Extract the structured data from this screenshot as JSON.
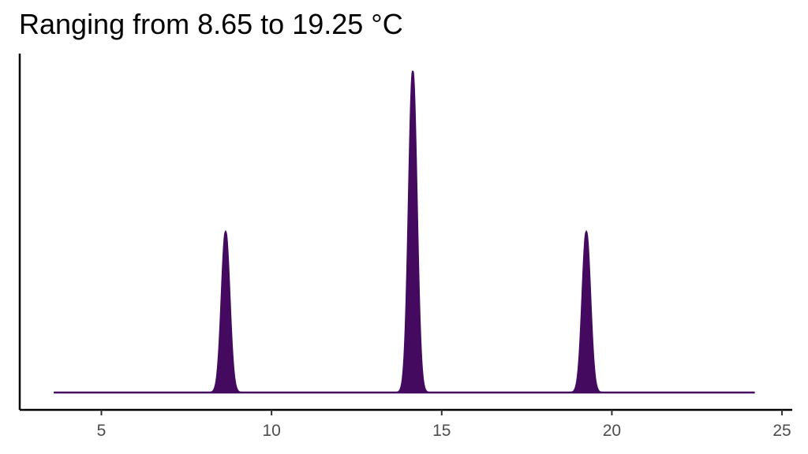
{
  "chart_data": {
    "type": "area",
    "title": "Ranging from 8.65 to 19.25 °C",
    "xlabel": "",
    "ylabel": "",
    "xlim": [
      2.6,
      25.3
    ],
    "xticks": [
      5,
      10,
      15,
      20,
      25
    ],
    "grid": false,
    "legend": "none",
    "fill_color": "#440a5f",
    "line_color": "#440a5f",
    "x_start": 3.6,
    "x_end": 24.2,
    "peaks": [
      {
        "center": 8.65,
        "relative_height": 0.5
      },
      {
        "center": 14.15,
        "relative_height": 1.0
      },
      {
        "center": 19.25,
        "relative_height": 0.5
      }
    ],
    "peak_sd": 0.12
  }
}
